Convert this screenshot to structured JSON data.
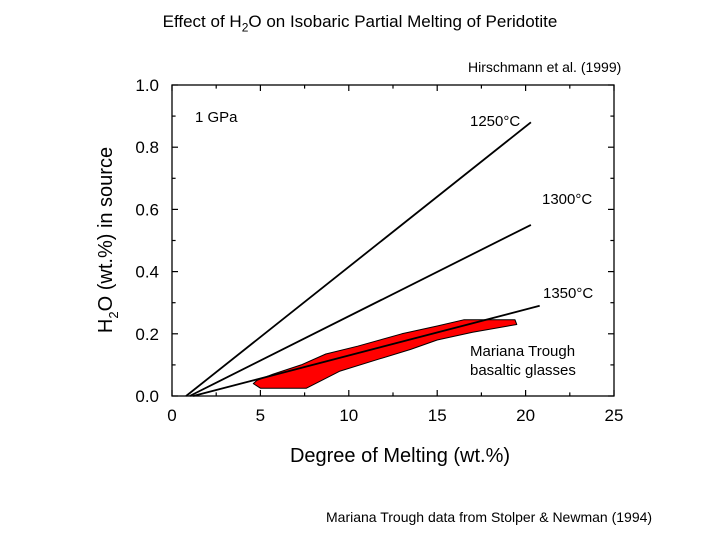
{
  "title": {
    "prefix": "Effect of H",
    "subscript": "2",
    "suffix": "O on Isobaric Partial Melting of Peridotite"
  },
  "citation": "Hirschmann et al. (1999)",
  "footnote": "Mariana Trough data from Stolper & Newman (1994)",
  "chart_data": {
    "type": "line",
    "xlabel": "Degree of Melting (wt.%)",
    "ylabel": {
      "prefix": "H",
      "subscript": "2",
      "suffix": "O (wt.%) in source"
    },
    "xlim": [
      0,
      25
    ],
    "ylim": [
      0,
      1.0
    ],
    "xticks": [
      0,
      5,
      10,
      15,
      20,
      25
    ],
    "xtick_labels": [
      "0",
      "5",
      "10",
      "15",
      "20",
      "25"
    ],
    "yticks": [
      0,
      0.2,
      0.4,
      0.6,
      0.8,
      1.0
    ],
    "ytick_labels": [
      "0.0",
      "0.2",
      "0.4",
      "0.6",
      "0.8",
      "1.0"
    ],
    "pressure_label": "1 GPa",
    "series": [
      {
        "name": "1250°C",
        "x": [
          0.8,
          20.3
        ],
        "y": [
          0.0,
          0.88
        ]
      },
      {
        "name": "1300°C",
        "x": [
          1.0,
          20.3
        ],
        "y": [
          0.0,
          0.55
        ]
      },
      {
        "name": "1350°C",
        "x": [
          1.2,
          20.8
        ],
        "y": [
          0.0,
          0.29
        ]
      }
    ],
    "region": {
      "name": "Mariana Trough basaltic glasses",
      "label_lines": [
        "Mariana Trough",
        "basaltic glasses"
      ],
      "color": "#ff0000",
      "polygon": [
        [
          4.8,
          0.05
        ],
        [
          5.7,
          0.07
        ],
        [
          7.3,
          0.1
        ],
        [
          8.7,
          0.135
        ],
        [
          10.5,
          0.16
        ],
        [
          13.0,
          0.2
        ],
        [
          15.0,
          0.225
        ],
        [
          16.5,
          0.245
        ],
        [
          19.4,
          0.245
        ],
        [
          19.5,
          0.23
        ],
        [
          17.0,
          0.205
        ],
        [
          15.0,
          0.18
        ],
        [
          13.5,
          0.15
        ],
        [
          11.5,
          0.115
        ],
        [
          9.5,
          0.08
        ],
        [
          7.6,
          0.025
        ],
        [
          5.0,
          0.025
        ],
        [
          4.6,
          0.04
        ]
      ]
    }
  }
}
